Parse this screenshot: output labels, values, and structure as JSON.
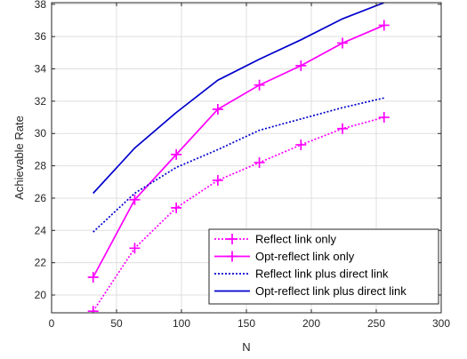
{
  "chart_data": {
    "type": "line",
    "xlabel": "N",
    "ylabel": "Achievable Rate",
    "xlim": [
      0,
      300
    ],
    "ylim": [
      18.9,
      38.1
    ],
    "xticks": [
      0,
      50,
      100,
      150,
      200,
      250,
      300
    ],
    "yticks": [
      20,
      22,
      24,
      26,
      28,
      30,
      32,
      34,
      36,
      38
    ],
    "grid": true,
    "legend_position": "bottom-right",
    "x": [
      32,
      64,
      96,
      128,
      160,
      192,
      224,
      256
    ],
    "series": [
      {
        "name": "Reflect link only",
        "color": "#ff00ff",
        "dash": "dotted",
        "marker": "plus",
        "values": [
          19.0,
          22.9,
          25.4,
          27.1,
          28.2,
          29.3,
          30.3,
          31.0
        ]
      },
      {
        "name": "Opt-reflect link only",
        "color": "#ff00ff",
        "dash": "solid",
        "marker": "plus",
        "values": [
          21.1,
          25.9,
          28.7,
          31.5,
          33.0,
          34.2,
          35.6,
          36.7
        ]
      },
      {
        "name": "Reflect link plus direct link",
        "color": "#0000cc",
        "dash": "dotted",
        "marker": "none",
        "values": [
          23.9,
          26.3,
          27.9,
          29.0,
          30.2,
          30.9,
          31.6,
          32.2
        ]
      },
      {
        "name": "Opt-reflect link plus direct link",
        "color": "#0000cc",
        "dash": "solid",
        "marker": "none",
        "values": [
          26.3,
          29.1,
          31.3,
          33.3,
          34.6,
          35.8,
          37.1,
          38.1
        ]
      }
    ]
  }
}
